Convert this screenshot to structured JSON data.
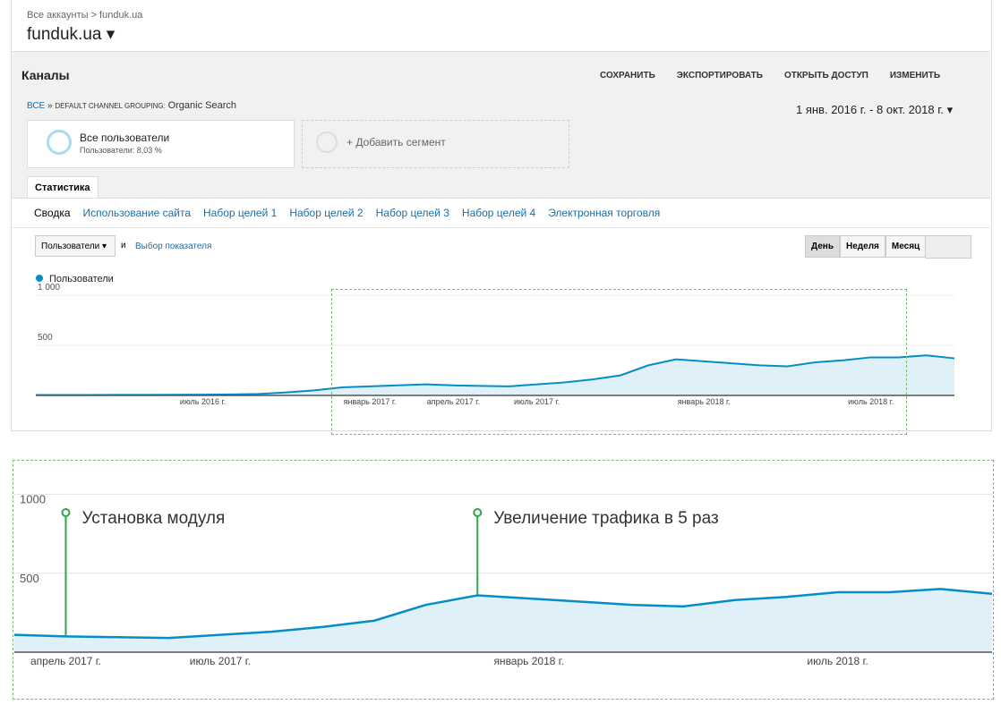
{
  "header": {
    "breadcrumb": "Все аккаунты > funduk.ua",
    "property": "funduk.ua"
  },
  "report": {
    "title": "Каналы",
    "actions": [
      "СОХРАНИТЬ",
      "ЭКСПОРТИРОВАТЬ",
      "ОТКРЫТЬ ДОСТУП",
      "ИЗМЕНИТЬ"
    ],
    "path_all": "ВСЕ",
    "path_group": "DEFAULT CHANNEL GROUPING:",
    "path_value": "Organic Search",
    "date_range": "1 янв. 2016 г. - 8 окт. 2018 г."
  },
  "segments": {
    "name": "Все пользователи",
    "detail": "Пользователи: 8,03 %",
    "add": "+ Добавить сегмент"
  },
  "tabs": {
    "main": "Статистика",
    "sub": [
      "Сводка",
      "Использование сайта",
      "Набор целей 1",
      "Набор целей 2",
      "Набор целей 3",
      "Набор целей 4",
      "Электронная торговля"
    ]
  },
  "controls": {
    "metric": "Пользователи",
    "and": "и",
    "choose": "Выбор показателя",
    "periods": [
      "День",
      "Неделя",
      "Месяц"
    ]
  },
  "chart_data": [
    {
      "type": "line",
      "categories": [
        null,
        null,
        null,
        null,
        null,
        null,
        "июль 2016 г.",
        null,
        null,
        null,
        null,
        null,
        "январь 2017 г.",
        null,
        null,
        "апрель 2017 г.",
        null,
        null,
        "июль 2017 г.",
        null,
        null,
        null,
        null,
        null,
        "январь 2018 г.",
        null,
        null,
        null,
        null,
        null,
        "июль 2018 г.",
        null,
        null,
        null
      ],
      "series": [
        {
          "name": "Пользователи",
          "color": "#058dc7",
          "values": [
            5,
            5,
            5,
            6,
            6,
            7,
            8,
            10,
            15,
            30,
            50,
            80,
            90,
            100,
            110,
            100,
            95,
            90,
            110,
            130,
            160,
            200,
            300,
            360,
            340,
            320,
            300,
            290,
            330,
            350,
            380,
            380,
            400,
            370
          ]
        }
      ],
      "ylim": [
        0,
        1000
      ],
      "yticks": [
        {
          "value": 1000,
          "label": "1 000"
        },
        500
      ]
    },
    {
      "type": "line",
      "categories": [
        null,
        "апрель 2017 г.",
        null,
        null,
        "июль 2017 г.",
        null,
        null,
        null,
        null,
        null,
        "январь 2018 г.",
        null,
        null,
        null,
        null,
        null,
        "июль 2018 г.",
        null,
        null,
        null
      ],
      "series": [
        {
          "color": "#058dc7",
          "values": [
            110,
            100,
            95,
            90,
            110,
            130,
            160,
            200,
            300,
            360,
            340,
            320,
            300,
            290,
            330,
            350,
            380,
            380,
            400,
            370
          ]
        }
      ],
      "ylim": [
        0,
        1060
      ],
      "yticks": [
        1000,
        500
      ],
      "annotations": [
        {
          "text": "Установка модуля"
        },
        {
          "text": "Увеличение трафика в 5 раз"
        }
      ]
    }
  ]
}
